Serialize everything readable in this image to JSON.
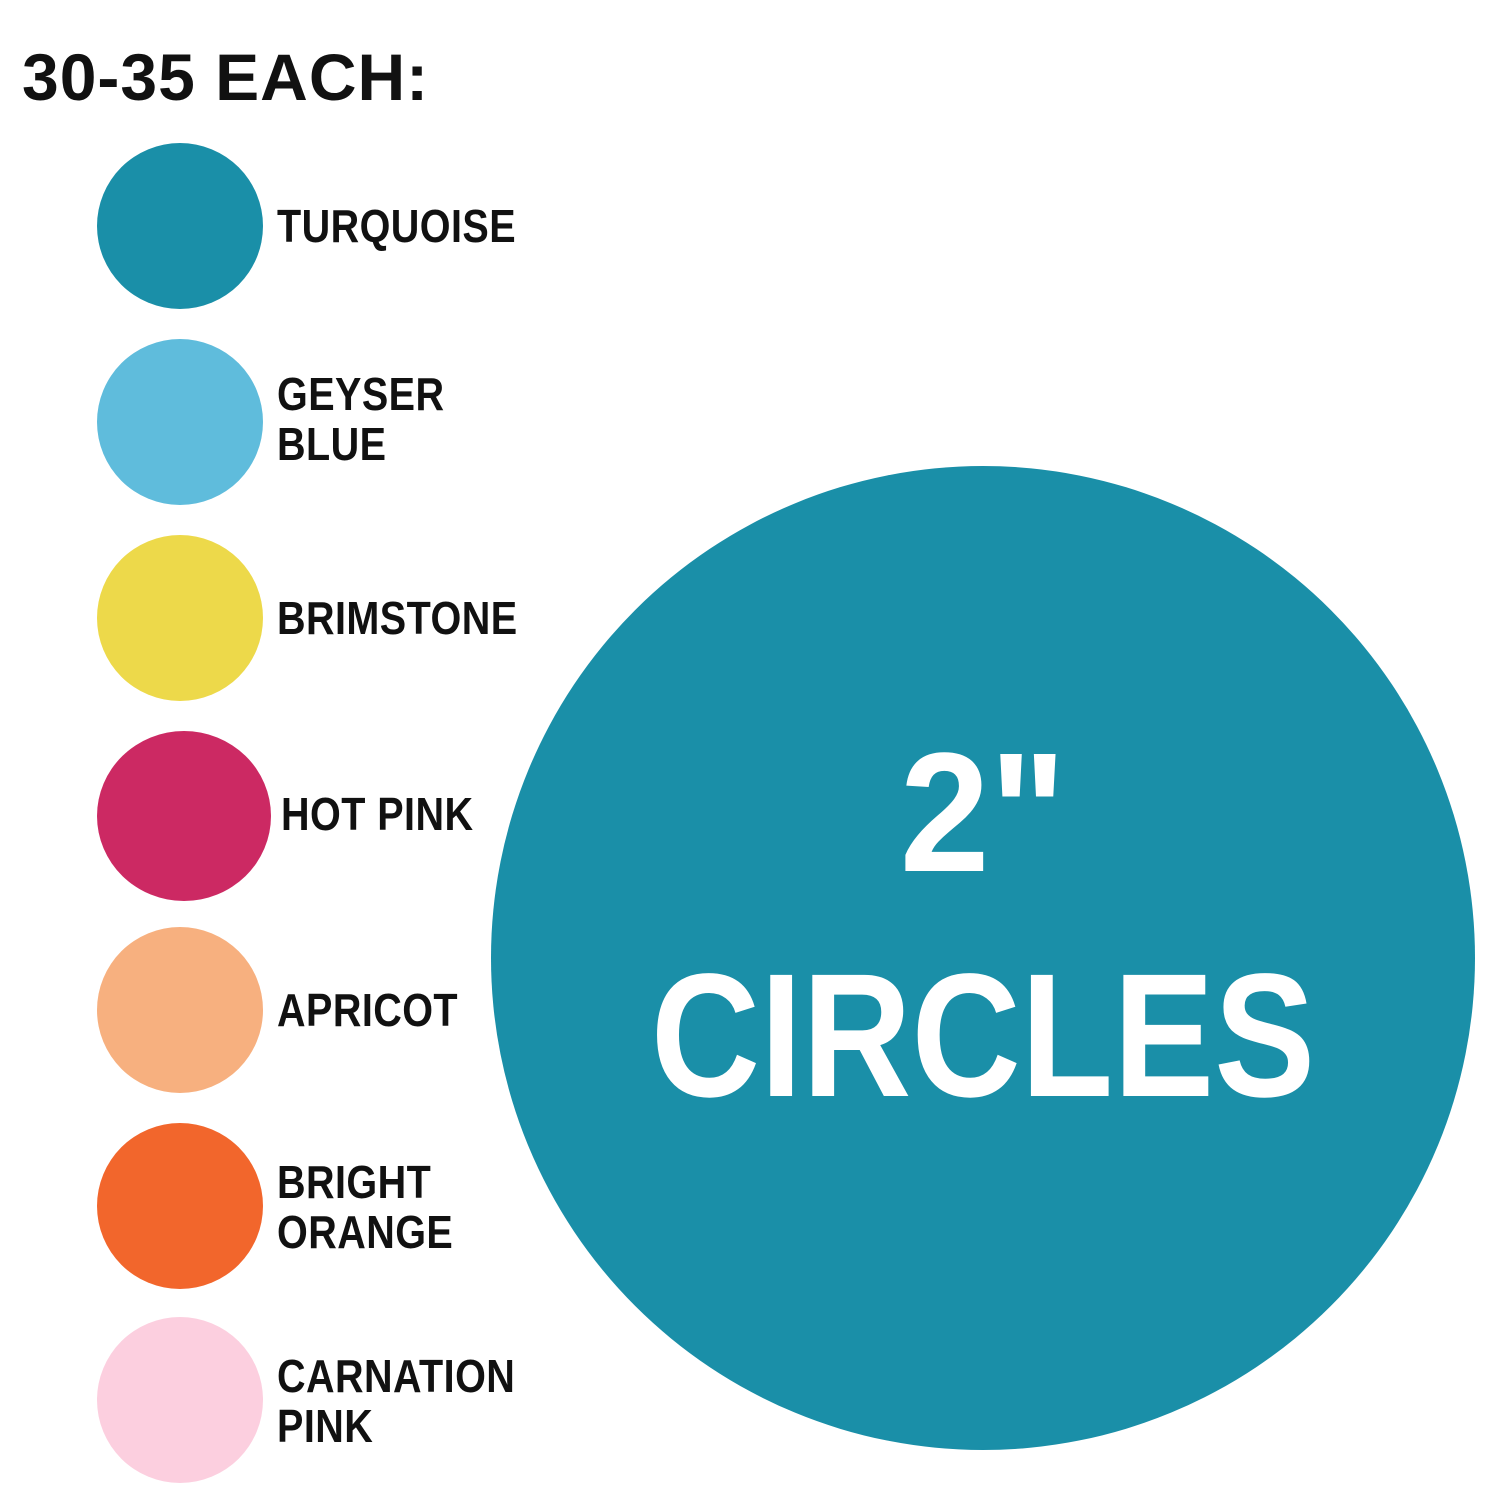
{
  "heading": "30-35 EACH:",
  "swatches": [
    {
      "label": "TURQUOISE",
      "color": "#1a8fa8"
    },
    {
      "label": "GEYSER\nBLUE",
      "color": "#5fbcdc"
    },
    {
      "label": "BRIMSTONE",
      "color": "#edd94a"
    },
    {
      "label": "HOT PINK",
      "color": "#cc2963"
    },
    {
      "label": "APRICOT",
      "color": "#f7b07f"
    },
    {
      "label": "BRIGHT\nORANGE",
      "color": "#f2662c"
    },
    {
      "label": "CARNATION\nPINK",
      "color": "#fccfdf"
    }
  ],
  "feature": {
    "size": "2\"",
    "label": "CIRCLES",
    "color": "#1a8fa8",
    "text_color": "#ffffff"
  }
}
